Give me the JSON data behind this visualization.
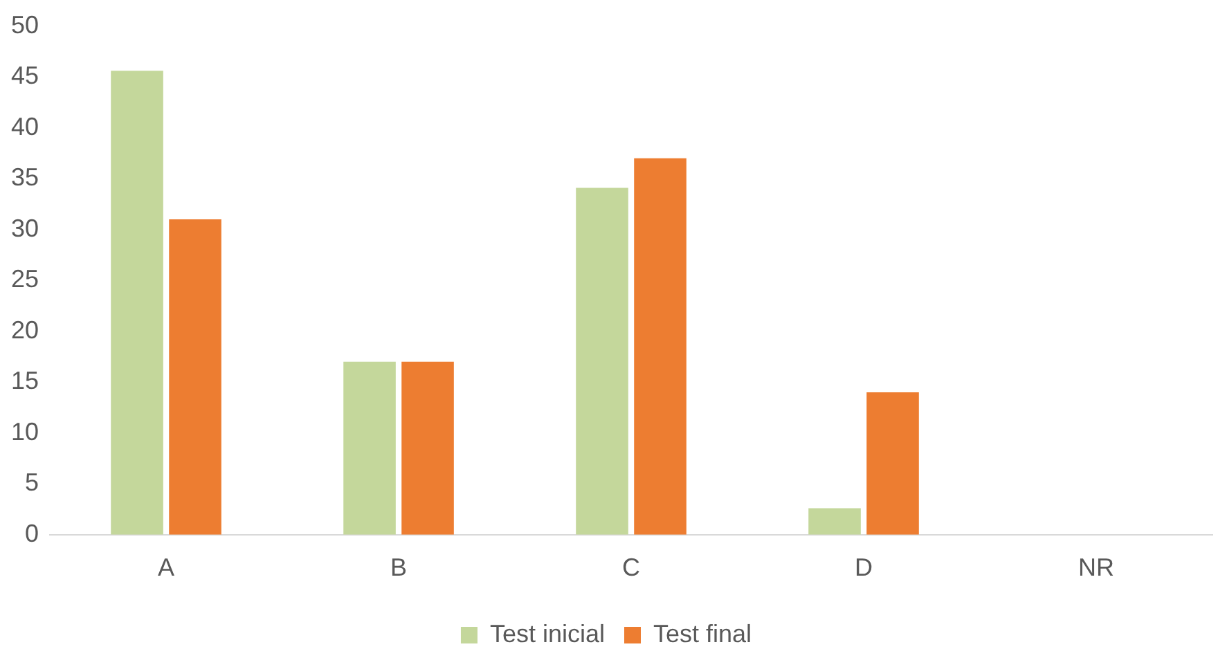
{
  "chart_data": {
    "type": "bar",
    "categories": [
      "A",
      "B",
      "C",
      "D",
      "NR"
    ],
    "series": [
      {
        "name": "Test inicial",
        "color": "#c4d79b",
        "values": [
          45.6,
          17,
          34.1,
          2.6,
          0
        ]
      },
      {
        "name": "Test final",
        "color": "#ed7d31",
        "values": [
          31,
          17,
          37,
          14,
          0
        ]
      }
    ],
    "ylim": [
      0,
      50
    ],
    "yticks": [
      0,
      5,
      10,
      15,
      20,
      25,
      30,
      35,
      40,
      45,
      50
    ],
    "grid": false,
    "legend": "bottom"
  }
}
